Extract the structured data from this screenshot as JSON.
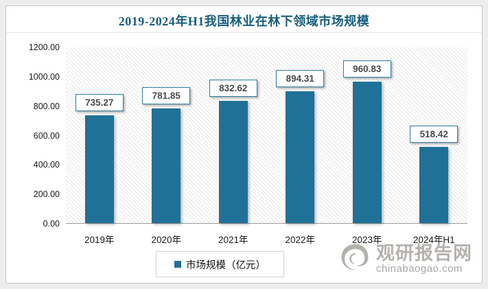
{
  "header": {
    "title": "2019-2024年H1我国林业在林下领域市场规模"
  },
  "chart_data": {
    "type": "bar",
    "title": "2019-2024年H1我国林业在林下领域市场规模",
    "categories": [
      "2019年",
      "2020年",
      "2021年",
      "2022年",
      "2023年",
      "2024年H1"
    ],
    "series": [
      {
        "name": "市场规模（亿元）",
        "values": [
          735.27,
          781.85,
          832.62,
          894.31,
          960.83,
          518.42
        ]
      }
    ],
    "value_labels": [
      "735.27",
      "781.85",
      "832.62",
      "894.31",
      "960.83",
      "518.42"
    ],
    "ylim": [
      0,
      1200
    ],
    "ytick_step": 200,
    "ytick_labels": [
      "1200.00",
      "1000.00",
      "800.00",
      "600.00",
      "400.00",
      "200.00",
      "0.00"
    ],
    "grid": false,
    "legend_position": "bottom"
  },
  "legend": {
    "label": "市场规模（亿元）"
  },
  "watermark": {
    "site_name": "观研报告网",
    "site_url": "chinabaogao.com"
  },
  "colors": {
    "bar": "#207197",
    "title": "#175E7D",
    "label_box_border": "#2F7EA1",
    "watermark_gray": "#b5b2ae"
  }
}
